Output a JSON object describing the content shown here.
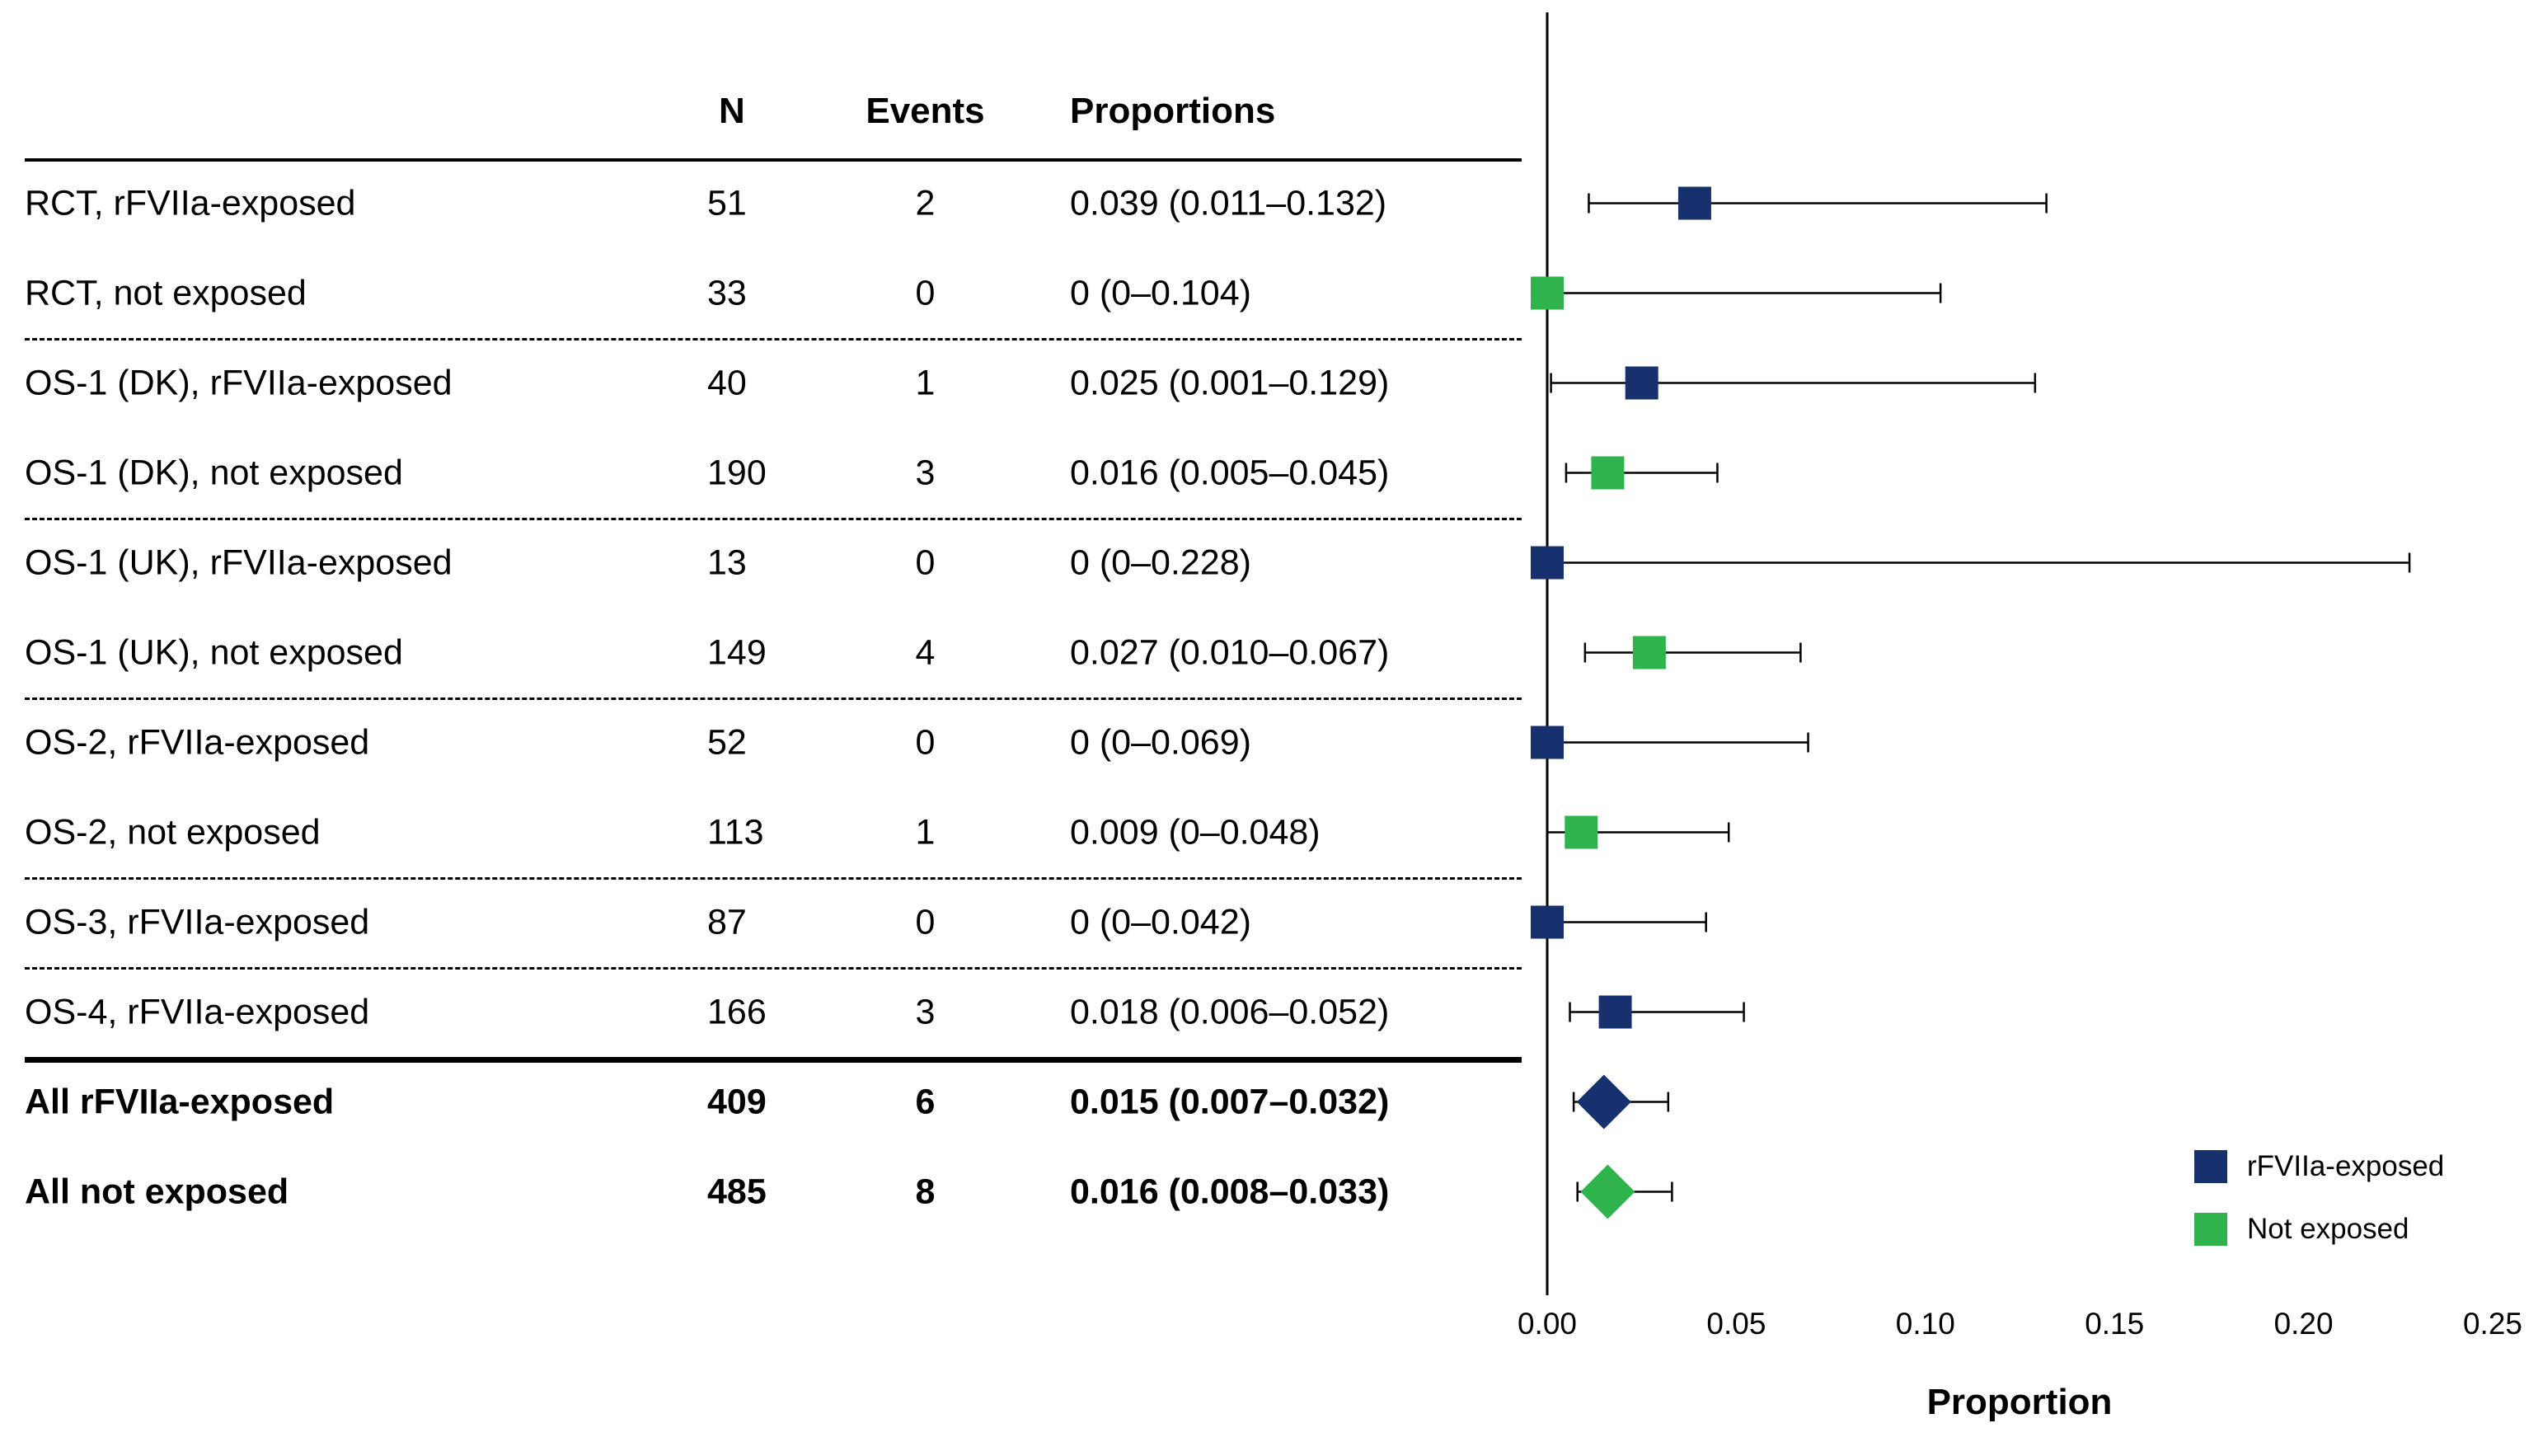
{
  "table": {
    "headers": {
      "n": "N",
      "events": "Events",
      "proportions": "Proportions"
    }
  },
  "chart_data": {
    "type": "scatter",
    "subtype": "forest-plot",
    "xlabel": "Proportion",
    "xlim": [
      0,
      0.25
    ],
    "xticks": [
      "0.00",
      "0.05",
      "0.10",
      "0.15",
      "0.20",
      "0.25"
    ],
    "grid": false,
    "legend_position": "bottom-right",
    "colors": {
      "rfviia_exposed": "#16316d",
      "not_exposed": "#2eb34d",
      "error_bar": "#000000",
      "axis": "#000000"
    },
    "legend": [
      {
        "label": "rFVIIa-exposed",
        "color_key": "rfviia_exposed"
      },
      {
        "label": "Not exposed",
        "color_key": "not_exposed"
      }
    ],
    "rows": [
      {
        "label": "RCT, rFVIIa-exposed",
        "n": "51",
        "events": "2",
        "proportion_text": "0.039 (0.011–0.132)",
        "estimate": 0.039,
        "ci_low": 0.011,
        "ci_high": 0.132,
        "group": "rfviia_exposed",
        "marker": "square",
        "bold": false,
        "separator_after": "none"
      },
      {
        "label": "RCT, not exposed",
        "n": "33",
        "events": "0",
        "proportion_text": "0 (0–0.104)",
        "estimate": 0,
        "ci_low": 0,
        "ci_high": 0.104,
        "group": "not_exposed",
        "marker": "square",
        "bold": false,
        "separator_after": "dashed"
      },
      {
        "label": "OS-1 (DK), rFVIIa-exposed",
        "n": "40",
        "events": "1",
        "proportion_text": "0.025 (0.001–0.129)",
        "estimate": 0.025,
        "ci_low": 0.001,
        "ci_high": 0.129,
        "group": "rfviia_exposed",
        "marker": "square",
        "bold": false,
        "separator_after": "none"
      },
      {
        "label": "OS-1 (DK), not exposed",
        "n": "190",
        "events": "3",
        "proportion_text": "0.016 (0.005–0.045)",
        "estimate": 0.016,
        "ci_low": 0.005,
        "ci_high": 0.045,
        "group": "not_exposed",
        "marker": "square",
        "bold": false,
        "separator_after": "dashed"
      },
      {
        "label": "OS-1 (UK), rFVIIa-exposed",
        "n": "13",
        "events": "0",
        "proportion_text": "0 (0–0.228)",
        "estimate": 0,
        "ci_low": 0,
        "ci_high": 0.228,
        "group": "rfviia_exposed",
        "marker": "square",
        "bold": false,
        "separator_after": "none"
      },
      {
        "label": "OS-1 (UK), not exposed",
        "n": "149",
        "events": "4",
        "proportion_text": "0.027 (0.010–0.067)",
        "estimate": 0.027,
        "ci_low": 0.01,
        "ci_high": 0.067,
        "group": "not_exposed",
        "marker": "square",
        "bold": false,
        "separator_after": "dashed"
      },
      {
        "label": "OS-2, rFVIIa-exposed",
        "n": "52",
        "events": "0",
        "proportion_text": "0 (0–0.069)",
        "estimate": 0,
        "ci_low": 0,
        "ci_high": 0.069,
        "group": "rfviia_exposed",
        "marker": "square",
        "bold": false,
        "separator_after": "none"
      },
      {
        "label": "OS-2, not exposed",
        "n": "113",
        "events": "1",
        "proportion_text": "0.009 (0–0.048)",
        "estimate": 0.009,
        "ci_low": 0,
        "ci_high": 0.048,
        "group": "not_exposed",
        "marker": "square",
        "bold": false,
        "separator_after": "dashed"
      },
      {
        "label": "OS-3, rFVIIa-exposed",
        "n": "87",
        "events": "0",
        "proportion_text": "0 (0–0.042)",
        "estimate": 0,
        "ci_low": 0,
        "ci_high": 0.042,
        "group": "rfviia_exposed",
        "marker": "square",
        "bold": false,
        "separator_after": "dashed"
      },
      {
        "label": "OS-4, rFVIIa-exposed",
        "n": "166",
        "events": "3",
        "proportion_text": "0.018 (0.006–0.052)",
        "estimate": 0.018,
        "ci_low": 0.006,
        "ci_high": 0.052,
        "group": "rfviia_exposed",
        "marker": "square",
        "bold": false,
        "separator_after": "thick"
      },
      {
        "label": "All rFVIIa-exposed",
        "n": "409",
        "events": "6",
        "proportion_text": "0.015 (0.007–0.032)",
        "estimate": 0.015,
        "ci_low": 0.007,
        "ci_high": 0.032,
        "group": "rfviia_exposed",
        "marker": "diamond",
        "bold": true,
        "separator_after": "none"
      },
      {
        "label": "All not exposed",
        "n": "485",
        "events": "8",
        "proportion_text": "0.016 (0.008–0.033)",
        "estimate": 0.016,
        "ci_low": 0.008,
        "ci_high": 0.033,
        "group": "not_exposed",
        "marker": "diamond",
        "bold": true,
        "separator_after": "none"
      }
    ]
  }
}
